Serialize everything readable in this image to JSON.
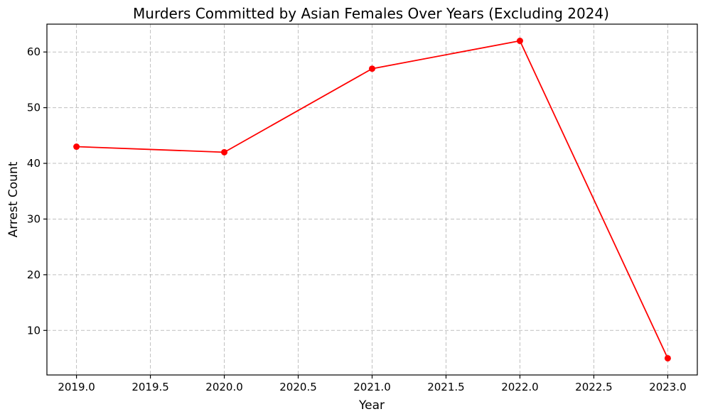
{
  "chart_data": {
    "type": "line",
    "title": "Murders Committed by Asian Females Over Years (Excluding 2024)",
    "xlabel": "Year",
    "ylabel": "Arrest Count",
    "xlim": [
      2018.8,
      2023.2
    ],
    "ylim": [
      2,
      65
    ],
    "xticks": [
      2019.0,
      2019.5,
      2020.0,
      2020.5,
      2021.0,
      2021.5,
      2022.0,
      2022.5,
      2023.0
    ],
    "xtick_labels": [
      "2019.0",
      "2019.5",
      "2020.0",
      "2020.5",
      "2021.0",
      "2021.5",
      "2022.0",
      "2022.5",
      "2023.0"
    ],
    "yticks": [
      10,
      20,
      30,
      40,
      50,
      60
    ],
    "ytick_labels": [
      "10",
      "20",
      "30",
      "40",
      "50",
      "60"
    ],
    "grid": true,
    "series": [
      {
        "color": "#ff0000",
        "marker": "circle",
        "x": [
          2019,
          2020,
          2021,
          2022,
          2023
        ],
        "y": [
          43,
          42,
          57,
          62,
          5
        ]
      }
    ]
  }
}
